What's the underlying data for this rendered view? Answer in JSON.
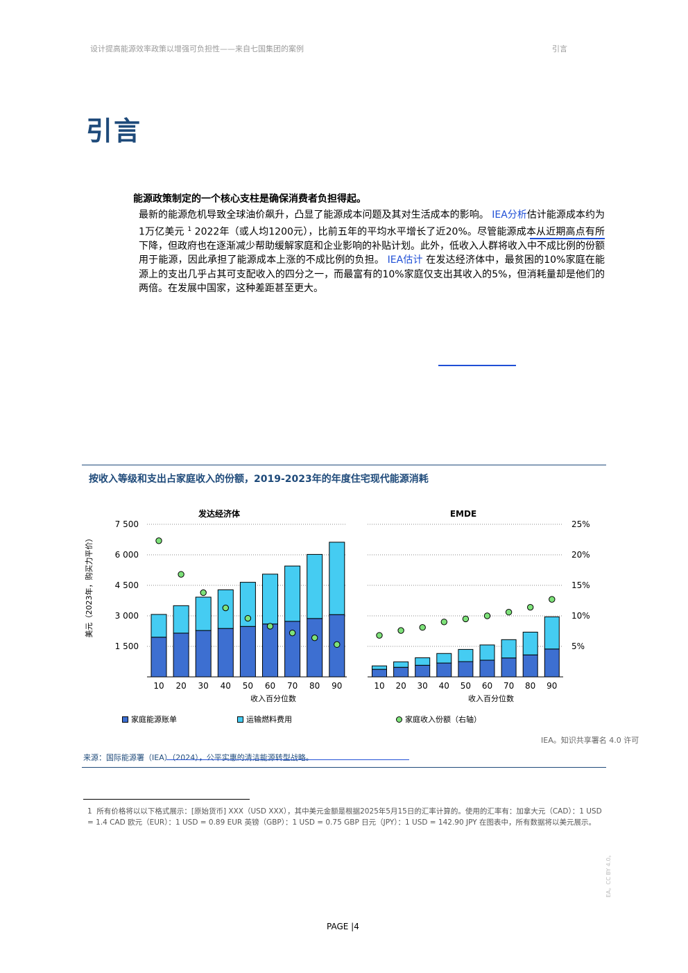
{
  "header": {
    "left": "设计提高能源效率政策以增强可负担性——来自七国集团的案例",
    "right": "引言"
  },
  "title": "引言",
  "lead": "能源政策制定的一个核心支柱是确保消费者负担得起。",
  "paragraph": {
    "s1": "最新的能源危机导致全球油价飙升，凸显了能源成本问题及其对生活成本的影响。 ",
    "link1": "IEA分析",
    "s2": "估计能源成本约为1万亿美元 ",
    "fnref": "1",
    "s3": " 2022年（或人均1200元），比前五年的平均水平增长了近20%。尽管能源成本从近期高点有所下降，但政府也在逐渐减少帮助缓解家庭和企业影响的补贴计划。此外，低收入人群将收入中不成比例的份额用于能源，因此承担了能源成本上涨的不成比例的负担。 ",
    "link2": "IEA估计",
    "s4": " 在发达经济体中，最贫困的10%家庭在能源上的支出几乎占其可支配收入的四分之一，而最富有的10%家庭仅支出其收入的5%，但消耗量却是他们的两倍。在发展中国家，这种差距甚至更大。"
  },
  "figure": {
    "title": "按收入等级和支出占家庭收入的份额，2019-2023年的年度住宅现代能源消耗",
    "credit": "IEA。知识共享署名 4.0 许可",
    "source": "来源：国际能源署（IEA）（2024），公平实惠的清洁能源转型战略。"
  },
  "chart_data": [
    {
      "type": "bar",
      "title": "发达经济体",
      "stacked": true,
      "categories": [
        "10",
        "20",
        "30",
        "40",
        "50",
        "60",
        "70",
        "80",
        "90"
      ],
      "xlabel": "收入百分位数",
      "ylabel": "美元（2023年，购买力平价）",
      "ylim": [
        0,
        7500
      ],
      "yticks": [
        "7 500",
        "6 000",
        "4 500",
        "3 000",
        "1 500"
      ],
      "yticks_values": [
        7500,
        6000,
        4500,
        3000,
        1500
      ],
      "series": [
        {
          "name": "家庭能源账单",
          "color": "#3d6fd1",
          "values": [
            1950,
            2150,
            2280,
            2380,
            2480,
            2600,
            2730,
            2870,
            3060
          ]
        },
        {
          "name": "运输燃料费用",
          "color": "#45ccf2",
          "values": [
            1120,
            1350,
            1640,
            1900,
            2170,
            2450,
            2720,
            3150,
            3560
          ]
        }
      ],
      "share_series": {
        "name": "家庭收入份额（右轴）",
        "color": "#7ee27a",
        "values": [
          22.3,
          16.8,
          13.8,
          11.3,
          9.6,
          8.3,
          7.2,
          6.4,
          5.3
        ]
      },
      "y2lim": [
        0,
        25
      ],
      "grid": true
    },
    {
      "type": "bar",
      "title": "EMDE",
      "stacked": true,
      "categories": [
        "10",
        "20",
        "30",
        "40",
        "50",
        "60",
        "70",
        "80",
        "90"
      ],
      "xlabel": "收入百分位数",
      "ylim": [
        0,
        7500
      ],
      "series": [
        {
          "name": "家庭能源账单",
          "color": "#3d6fd1",
          "values": [
            370,
            470,
            570,
            680,
            750,
            820,
            930,
            1080,
            1370
          ]
        },
        {
          "name": "运输燃料费用",
          "color": "#45ccf2",
          "values": [
            170,
            270,
            370,
            470,
            600,
            750,
            900,
            1120,
            1580
          ]
        }
      ],
      "share_series": {
        "name": "家庭收入份额（右轴）",
        "color": "#7ee27a",
        "values": [
          6.8,
          7.6,
          8.1,
          9.0,
          9.5,
          10.0,
          10.6,
          11.4,
          12.7
        ]
      },
      "y2lim": [
        0,
        25
      ],
      "y2ticks": [
        "25%",
        "20%",
        "15%",
        "10%",
        "5%"
      ],
      "y2ticks_values": [
        25,
        20,
        15,
        10,
        5
      ],
      "grid": true
    }
  ],
  "legend": {
    "item1": "家庭能源账单",
    "item2": "运输燃料费用",
    "item3": "家庭收入份额（右轴）"
  },
  "footnote": {
    "num": "1",
    "text": "所有价格将以以下格式展示：[原始货币] XXX（USD XXX），其中美元金额是根据2025年5月15日的汇率计算的。使用的汇率有：加拿大元（CAD）：1 USD = 1.4 CAD 欧元（EUR）：1 USD = 0.89 EUR 英镑（GBP）：1 USD = 0.75 GBP 日元（JPY）：1 USD = 142.90 JPY 在图表中，所有数据将以美元展示。"
  },
  "side_mark": "EA。CC BY 4.0。",
  "page": "PAGE |4"
}
